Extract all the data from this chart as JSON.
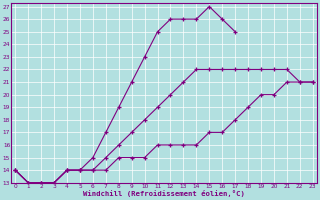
{
  "xlabel": "Windchill (Refroidissement éolien,°C)",
  "x": [
    0,
    1,
    2,
    3,
    4,
    5,
    6,
    7,
    8,
    9,
    10,
    11,
    12,
    13,
    14,
    15,
    16,
    17,
    18,
    19,
    20,
    21,
    22,
    23
  ],
  "line1_y": [
    14,
    13,
    13,
    13,
    14,
    14,
    15,
    17,
    19,
    21,
    23,
    25,
    26,
    26,
    26,
    27,
    26,
    25,
    null,
    null,
    null,
    null,
    null,
    null
  ],
  "line2_y": [
    14,
    13,
    13,
    13,
    14,
    14,
    14,
    15,
    16,
    17,
    18,
    19,
    20,
    21,
    22,
    22,
    22,
    22,
    22,
    22,
    22,
    22,
    21,
    21
  ],
  "line3_y": [
    14,
    13,
    13,
    13,
    14,
    14,
    14,
    14,
    15,
    15,
    15,
    16,
    16,
    16,
    16,
    17,
    17,
    18,
    19,
    20,
    20,
    21,
    21,
    21
  ],
  "ylim_min": 13,
  "ylim_max": 27,
  "yticks": [
    13,
    14,
    15,
    16,
    17,
    18,
    19,
    20,
    21,
    22,
    23,
    24,
    25,
    26,
    27
  ],
  "xticks": [
    0,
    1,
    2,
    3,
    4,
    5,
    6,
    7,
    8,
    9,
    10,
    11,
    12,
    13,
    14,
    15,
    16,
    17,
    18,
    19,
    20,
    21,
    22,
    23
  ],
  "line_color": "#800080",
  "bg_color": "#b2e0e0",
  "grid_color": "#ffffff"
}
